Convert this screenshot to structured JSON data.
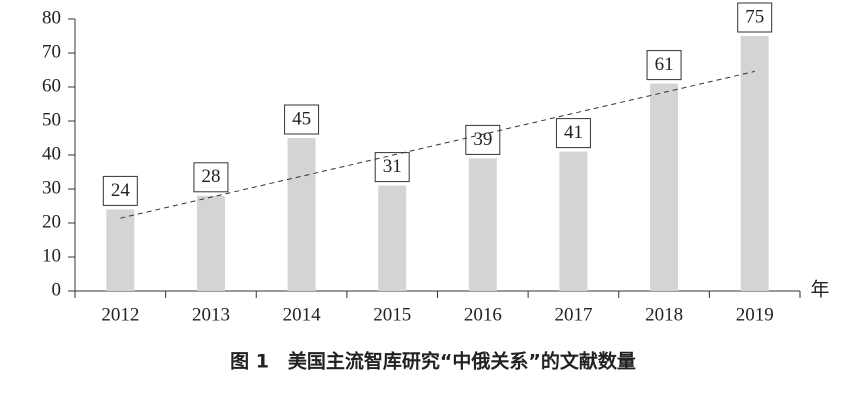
{
  "chart_data": {
    "type": "bar",
    "categories": [
      "2012",
      "2013",
      "2014",
      "2015",
      "2016",
      "2017",
      "2018",
      "2019"
    ],
    "values": [
      24,
      28,
      45,
      31,
      39,
      41,
      61,
      75
    ],
    "color": "#d4d4d4",
    "ylim": [
      0,
      80
    ],
    "yticks": [
      0,
      10,
      20,
      30,
      40,
      50,
      60,
      70,
      80
    ],
    "x_label": "年",
    "caption": "图 1　美国主流智库研究“中俄关系”的文献数量",
    "trendline": "linear",
    "grid": false
  }
}
